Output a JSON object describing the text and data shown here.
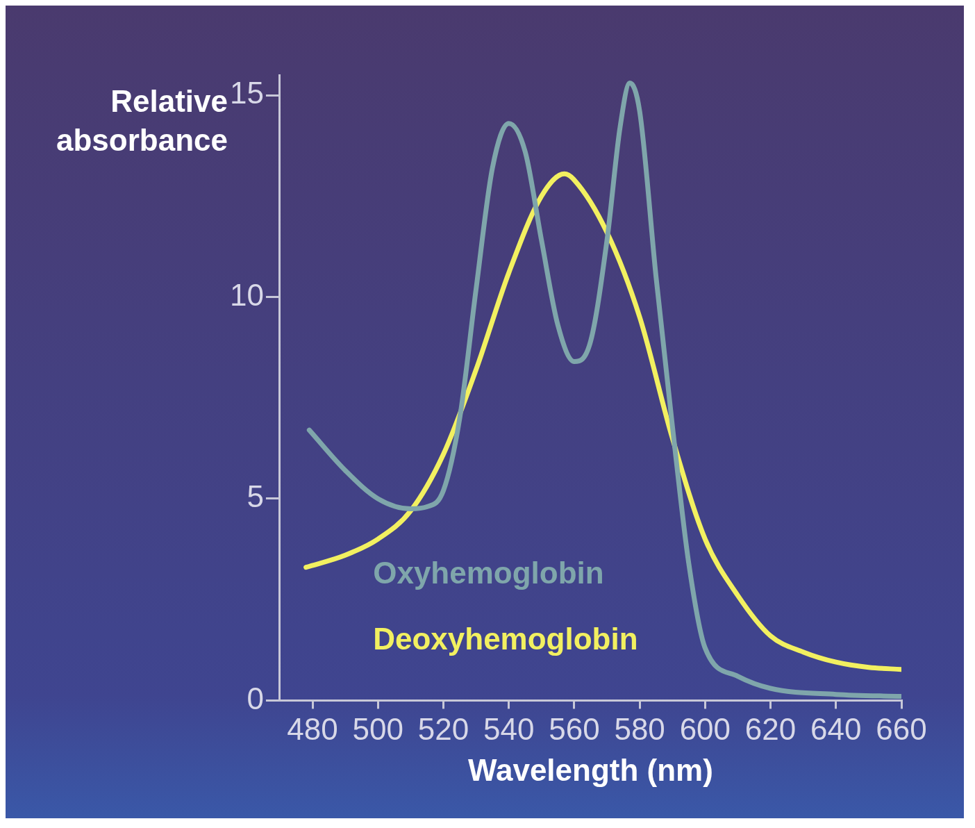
{
  "chart_data": {
    "type": "line",
    "xlabel": "Wavelength (nm)",
    "ylabel": "Relative absorbance",
    "xlim": [
      470,
      660
    ],
    "xticks": [
      480,
      500,
      520,
      540,
      560,
      580,
      600,
      620,
      640,
      660
    ],
    "ylim": [
      0,
      15.5
    ],
    "yticks": [
      0,
      5,
      10,
      15
    ],
    "grid": false,
    "legend": false,
    "marker": "none",
    "line_style": "solid",
    "series": [
      {
        "name": "Oxyhemoglobin",
        "color": "#7fa6ab",
        "x": [
          479,
          490,
          500,
          510,
          515,
          520,
          525,
          530,
          535,
          540,
          545,
          550,
          555,
          560,
          565,
          570,
          574,
          577,
          580,
          585,
          590,
          595,
          600,
          610,
          620,
          640,
          660
        ],
        "values": [
          6.7,
          5.7,
          5.0,
          4.75,
          4.8,
          5.2,
          7.0,
          10.2,
          13.2,
          14.3,
          13.6,
          11.4,
          9.3,
          8.4,
          8.9,
          11.4,
          14.2,
          15.3,
          14.6,
          10.5,
          6.8,
          3.4,
          1.3,
          0.6,
          0.3,
          0.15,
          0.1
        ]
      },
      {
        "name": "Deoxyhemoglobin",
        "color": "#f2f060",
        "x": [
          478,
          490,
          500,
          510,
          520,
          530,
          540,
          550,
          557,
          560,
          570,
          580,
          590,
          600,
          610,
          620,
          630,
          640,
          650,
          660
        ],
        "values": [
          3.3,
          3.6,
          4.0,
          4.7,
          6.1,
          8.2,
          10.6,
          12.5,
          13.05,
          12.9,
          11.6,
          9.5,
          6.5,
          4.0,
          2.6,
          1.6,
          1.2,
          0.95,
          0.82,
          0.77
        ]
      }
    ]
  }
}
